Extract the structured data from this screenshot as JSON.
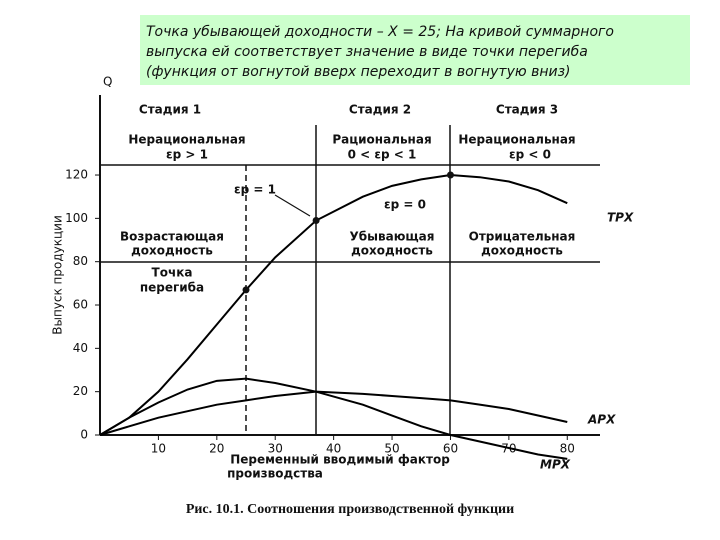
{
  "header": {
    "lines": [
      "Точка убывающей доходности – Х = 25; На кривой суммарного",
      "выпуска ей соответствует значение в виде точки перегиба",
      "(функция от вогнутой вверх переходит в вогнутую вниз)"
    ]
  },
  "chart_data": {
    "type": "line",
    "y_axis_title": "Q",
    "y_label": "Выпуск продукции",
    "x_label_lines": [
      "Переменный вводимый фактор",
      "производства"
    ],
    "caption": "Рис. 10.1. Соотношения производственной функции",
    "xlim": [
      0,
      88
    ],
    "ylim": [
      -15,
      155
    ],
    "xticks": [
      10,
      20,
      30,
      40,
      50,
      60,
      70,
      80
    ],
    "yticks": [
      0,
      20,
      40,
      60,
      80,
      100,
      120
    ],
    "series": [
      {
        "name": "TPX",
        "color": "#000000",
        "x": [
          0,
          5,
          10,
          15,
          20,
          25,
          30,
          37,
          45,
          50,
          55,
          60,
          65,
          70,
          75,
          80
        ],
        "values": [
          0,
          8,
          20,
          35,
          51,
          67,
          82,
          99,
          110,
          115,
          118,
          120,
          119,
          117,
          113,
          107
        ]
      },
      {
        "name": "APX",
        "color": "#000000",
        "x": [
          0,
          5,
          10,
          15,
          20,
          25,
          30,
          37,
          45,
          50,
          55,
          60,
          65,
          70,
          75,
          80
        ],
        "values": [
          0,
          4,
          8,
          11,
          14,
          16,
          18,
          20,
          19,
          18,
          17,
          16,
          14,
          12,
          9,
          6
        ]
      },
      {
        "name": "MPX",
        "color": "#000000",
        "x": [
          0,
          5,
          10,
          15,
          20,
          25,
          30,
          37,
          45,
          50,
          55,
          60,
          65,
          70,
          75,
          80
        ],
        "values": [
          0,
          8,
          15,
          21,
          25,
          26,
          24,
          20,
          14,
          9,
          4,
          0,
          -3,
          -6,
          -9,
          -11
        ]
      }
    ],
    "markers": {
      "x": [
        25,
        37,
        60
      ],
      "values": [
        67,
        99,
        120
      ]
    },
    "annotations": [
      "Стадия 1",
      "Стадия 2",
      "Стадия 3",
      "Нерациональная",
      "εp > 1",
      "Рациональная",
      "0 < εp < 1",
      "Нерациональная",
      "εp < 0",
      "εp = 1",
      "εp = 0",
      "Возрастающая",
      "доходность",
      "Убывающая",
      "доходность",
      "Отрицательная",
      "доходность",
      "Точка",
      "перегиба"
    ]
  }
}
